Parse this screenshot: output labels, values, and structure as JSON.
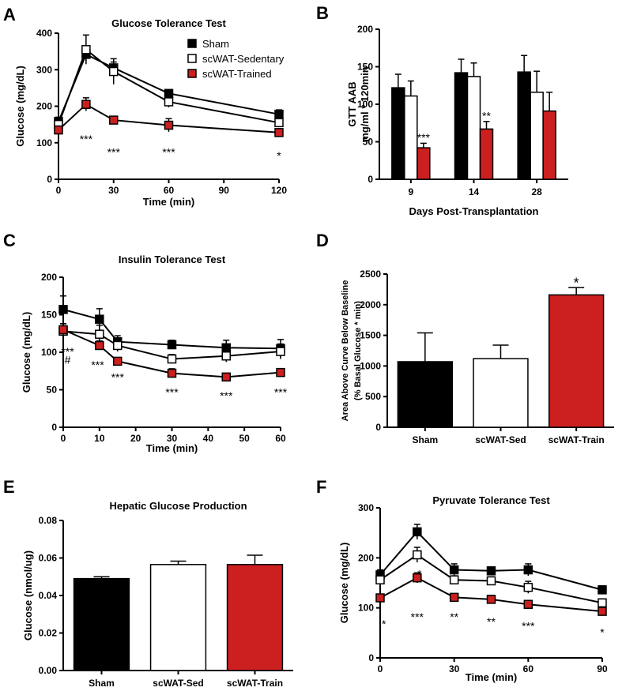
{
  "panels": [
    {
      "id": "A",
      "letter": "A",
      "type": "line",
      "title": "Glucose Tolerance Test",
      "xlabel": "Time (min)",
      "ylabel": "Glucose (mg/dL)",
      "xlim": [
        0,
        120
      ],
      "ylim": [
        0,
        400
      ],
      "xticks": [
        0,
        30,
        60,
        90,
        120
      ],
      "yticks": [
        0,
        100,
        200,
        300,
        400
      ],
      "legend": {
        "placement": "top-right",
        "entries": [
          "Sham",
          "scWAT-Sedentary",
          "scWAT-Trained"
        ]
      },
      "series": [
        {
          "name": "Sham",
          "style": "black",
          "x": [
            0,
            15,
            30,
            60,
            120
          ],
          "y": [
            158,
            342,
            305,
            235,
            178
          ],
          "err": [
            12,
            18,
            16,
            8,
            12
          ]
        },
        {
          "name": "scWAT-Sedentary",
          "style": "white",
          "x": [
            0,
            15,
            30,
            60,
            120
          ],
          "y": [
            150,
            355,
            295,
            212,
            155
          ],
          "err": [
            10,
            40,
            35,
            15,
            12
          ]
        },
        {
          "name": "scWAT-Trained",
          "style": "red",
          "x": [
            0,
            15,
            30,
            60,
            120
          ],
          "y": [
            135,
            205,
            162,
            148,
            128
          ],
          "err": [
            8,
            18,
            10,
            18,
            8
          ]
        }
      ],
      "annotations": [
        {
          "x": 15,
          "y": 110,
          "text": "***"
        },
        {
          "x": 30,
          "y": 75,
          "text": "***"
        },
        {
          "x": 60,
          "y": 75,
          "text": "***"
        },
        {
          "x": 120,
          "y": 65,
          "text": "*"
        }
      ]
    },
    {
      "id": "B",
      "letter": "B",
      "type": "bar",
      "title": "",
      "xlabel": "Days Post-Transplantation",
      "ylabel": "GTT AAB",
      "ylabel2": "mg/ml * 120min",
      "ylim": [
        0,
        200
      ],
      "yticks": [
        0,
        50,
        100,
        150,
        200
      ],
      "categories": [
        "9",
        "14",
        "28"
      ],
      "series": [
        {
          "name": "Sham",
          "style": "black",
          "values": [
            122,
            142,
            143
          ],
          "err": [
            18,
            18,
            22
          ]
        },
        {
          "name": "scWAT-Sedentary",
          "style": "white",
          "values": [
            111,
            137,
            116
          ],
          "err": [
            20,
            18,
            28
          ]
        },
        {
          "name": "scWAT-Trained",
          "style": "red",
          "values": [
            42,
            67,
            91
          ],
          "err": [
            6,
            10,
            25
          ]
        }
      ],
      "annotations": [
        {
          "group": 0,
          "y": 56,
          "text": "***"
        },
        {
          "group": 1,
          "y": 85,
          "text": "**"
        }
      ]
    },
    {
      "id": "C",
      "letter": "C",
      "type": "line",
      "title": "Insulin Tolerance Test",
      "xlabel": "Time (min)",
      "ylabel": "Glucose (mg/dL)",
      "xlim": [
        0,
        60
      ],
      "ylim": [
        0,
        200
      ],
      "xticks": [
        0,
        10,
        20,
        30,
        40,
        50,
        60
      ],
      "yticks": [
        0,
        50,
        100,
        150,
        200
      ],
      "series": [
        {
          "name": "Sham",
          "style": "black",
          "x": [
            0,
            10,
            15,
            30,
            45,
            60
          ],
          "y": [
            157,
            144,
            114,
            110,
            106,
            105
          ],
          "err": [
            18,
            14,
            8,
            6,
            10,
            12
          ]
        },
        {
          "name": "scWAT-Sedentary",
          "style": "white",
          "x": [
            0,
            10,
            15,
            30,
            45,
            60
          ],
          "y": [
            128,
            124,
            109,
            91,
            95,
            101
          ],
          "err": [
            10,
            12,
            8,
            6,
            8,
            10
          ]
        },
        {
          "name": "scWAT-Trained",
          "style": "red",
          "x": [
            0,
            10,
            15,
            30,
            45,
            60
          ],
          "y": [
            130,
            109,
            88,
            72,
            67,
            73
          ],
          "err": [
            8,
            6,
            4,
            6,
            4,
            4
          ]
        }
      ],
      "annotations": [
        {
          "x": 1.2,
          "y": 101,
          "text": "***"
        },
        {
          "x": 1.2,
          "y": 90,
          "text": "#"
        },
        {
          "x": 9.5,
          "y": 83,
          "text": "***"
        },
        {
          "x": 15,
          "y": 67,
          "text": "***"
        },
        {
          "x": 30,
          "y": 47,
          "text": "***"
        },
        {
          "x": 45,
          "y": 42,
          "text": "***"
        },
        {
          "x": 60,
          "y": 47,
          "text": "***"
        }
      ]
    },
    {
      "id": "D",
      "letter": "D",
      "type": "bar",
      "title": "",
      "xlabel": "",
      "ylabel": "Area Above Curve Below  Baseline",
      "ylabel2": "(% Basal Glucose * min)",
      "ylim": [
        0,
        2500
      ],
      "yticks": [
        0,
        500,
        1000,
        1500,
        2000,
        2500
      ],
      "categories": [
        "Sham",
        "scWAT-Sed",
        "scWAT-Train"
      ],
      "series": [
        {
          "name": "Sham",
          "style": "black",
          "values": [
            1070
          ],
          "err": [
            470
          ]
        },
        {
          "name": "scWAT-Sed",
          "style": "white",
          "values": [
            1120
          ],
          "err": [
            220
          ]
        },
        {
          "name": "scWAT-Train",
          "style": "red",
          "values": [
            2160
          ],
          "err": [
            120
          ]
        }
      ],
      "annotations": [
        {
          "group": 2,
          "y": 2350,
          "text": "*"
        }
      ]
    },
    {
      "id": "E",
      "letter": "E",
      "type": "bar",
      "title": "Hepatic Glucose Production",
      "xlabel": "",
      "ylabel": "Glucose (nmol/ug)",
      "ylabel2": "",
      "ylim": [
        0,
        0.08
      ],
      "yticks": [
        "0.00",
        "0.02",
        "0.04",
        "0.06",
        "0.08"
      ],
      "categories": [
        "Sham",
        "scWAT-Sed",
        "scWAT-Train"
      ],
      "series": [
        {
          "name": "Sham",
          "style": "black",
          "values": [
            0.049
          ],
          "err": [
            0.001
          ]
        },
        {
          "name": "scWAT-Sed",
          "style": "white",
          "values": [
            0.0565
          ],
          "err": [
            0.0018
          ]
        },
        {
          "name": "scWAT-Train",
          "style": "red",
          "values": [
            0.0565
          ],
          "err": [
            0.005
          ]
        }
      ],
      "annotations": []
    },
    {
      "id": "F",
      "letter": "F",
      "type": "line",
      "title": "Pyruvate Tolerance Test",
      "xlabel": "Time (min)",
      "ylabel": "Glucose (mg/dL)",
      "xlim": [
        0,
        90
      ],
      "ylim": [
        0,
        300
      ],
      "xticks": [
        0,
        30,
        60,
        90
      ],
      "yticks": [
        0,
        100,
        200,
        300
      ],
      "series": [
        {
          "name": "Sham",
          "style": "black",
          "x": [
            0,
            15,
            30,
            45,
            60,
            90
          ],
          "y": [
            166,
            252,
            176,
            174,
            176,
            136
          ],
          "err": [
            10,
            15,
            12,
            8,
            12,
            8
          ]
        },
        {
          "name": "scWAT-Sedentary",
          "style": "white",
          "x": [
            0,
            15,
            30,
            45,
            60,
            90
          ],
          "y": [
            156,
            206,
            156,
            154,
            141,
            110
          ],
          "err": [
            8,
            15,
            8,
            8,
            12,
            8
          ]
        },
        {
          "name": "scWAT-Trained",
          "style": "red",
          "x": [
            0,
            15,
            30,
            45,
            60,
            90
          ],
          "y": [
            120,
            160,
            121,
            117,
            107,
            93
          ],
          "err": [
            6,
            10,
            6,
            8,
            4,
            5
          ]
        }
      ],
      "annotations": [
        {
          "x": 1.5,
          "y": 68,
          "text": "*"
        },
        {
          "x": 16,
          "y": 168,
          "text": "*"
        },
        {
          "x": 15,
          "y": 82,
          "text": "***"
        },
        {
          "x": 30,
          "y": 82,
          "text": "**"
        },
        {
          "x": 45,
          "y": 73,
          "text": "**"
        },
        {
          "x": 60,
          "y": 64,
          "text": "***"
        },
        {
          "x": 90,
          "y": 51,
          "text": "*"
        }
      ]
    }
  ],
  "colors": {
    "black": "#000000",
    "white": "#ffffff",
    "red": "#cc1f1f",
    "axis": "#000000"
  }
}
